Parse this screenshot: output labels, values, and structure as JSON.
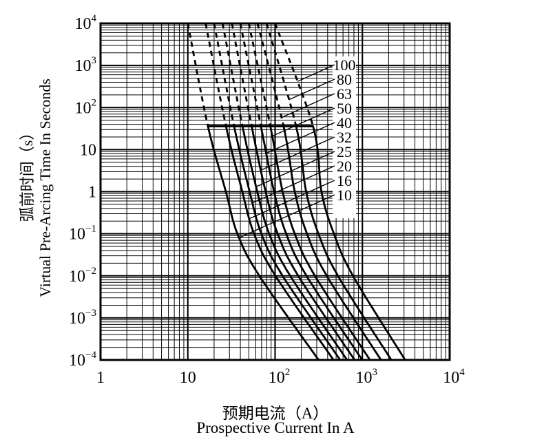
{
  "figure": {
    "background": "#ffffff",
    "foreground": "#000000"
  },
  "chart_data": {
    "type": "line",
    "title": "",
    "xlabel_cn": "预期电流（A）",
    "xlabel_en": "Prospective Current In A",
    "ylabel_cn": "弧前时间（s）",
    "ylabel_en": "Virtual Pre-Arcing Time In Seconds",
    "x_axis": {
      "scale": "log",
      "min": 1,
      "max": 10000,
      "unit": "A"
    },
    "y_axis": {
      "scale": "log",
      "min": 0.0001,
      "max": 10000,
      "unit": "s"
    },
    "x_ticks": [
      {
        "text": "1"
      },
      {
        "text": "10"
      },
      {
        "text": "10",
        "exp": "2"
      },
      {
        "text": "10",
        "exp": "3"
      },
      {
        "text": "10",
        "exp": "4"
      }
    ],
    "y_ticks": [
      {
        "text": "10",
        "exp": "4"
      },
      {
        "text": "10",
        "exp": "3"
      },
      {
        "text": "10",
        "exp": "2"
      },
      {
        "text": "10"
      },
      {
        "text": "1"
      },
      {
        "text": "10",
        "exp": "−1"
      },
      {
        "text": "10",
        "exp": "−2"
      },
      {
        "text": "10",
        "exp": "−3"
      },
      {
        "text": "10",
        "exp": "−4"
      }
    ],
    "grid": {
      "major": true,
      "minor": true,
      "style": "full log-log grid"
    },
    "legend": {
      "labels": [
        "100",
        "80",
        "63",
        "50",
        "40",
        "32",
        "25",
        "20",
        "16",
        "10"
      ],
      "unit": "A",
      "position": "inside-right"
    },
    "dash_to_solid_boundary": {
      "time_s": 36,
      "current_min_amps": 17,
      "current_max_amps": 272,
      "note": "curves dashed above this time; bold horizontal segment drawn at it"
    },
    "series": [
      {
        "rating_label": "10",
        "points_amps_seconds": [
          [
            10,
            10000.0
          ],
          [
            17,
            36
          ],
          [
            27.3,
            1
          ],
          [
            37,
            0.1
          ],
          [
            66,
            0.01
          ],
          [
            315,
            0.0001
          ]
        ]
      },
      {
        "rating_label": "16",
        "points_amps_seconds": [
          [
            16,
            10000.0
          ],
          [
            27.4,
            36
          ],
          [
            42.1,
            1
          ],
          [
            57.4,
            0.1
          ],
          [
            101,
            0.01
          ],
          [
            467,
            0.0001
          ]
        ]
      },
      {
        "rating_label": "20",
        "points_amps_seconds": [
          [
            20,
            10000.0
          ],
          [
            33.9,
            36
          ],
          [
            51.1,
            1
          ],
          [
            69.7,
            0.1
          ],
          [
            122,
            0.01
          ],
          [
            557,
            0.0001
          ]
        ]
      },
      {
        "rating_label": "25",
        "points_amps_seconds": [
          [
            25,
            10000.0
          ],
          [
            42.3,
            36
          ],
          [
            62.5,
            1
          ],
          [
            85.5,
            0.1
          ],
          [
            149,
            0.01
          ],
          [
            668,
            0.0001
          ]
        ]
      },
      {
        "rating_label": "32",
        "points_amps_seconds": [
          [
            32,
            10000.0
          ],
          [
            53.9,
            36
          ],
          [
            77.9,
            1
          ],
          [
            107,
            0.1
          ],
          [
            184,
            0.01
          ],
          [
            815,
            0.0001
          ]
        ]
      },
      {
        "rating_label": "40",
        "points_amps_seconds": [
          [
            40,
            10000.0
          ],
          [
            68.8,
            36
          ],
          [
            97.3,
            1
          ],
          [
            134,
            0.1
          ],
          [
            229,
            0.01
          ],
          [
            996,
            0.0001
          ]
        ]
      },
      {
        "rating_label": "50",
        "points_amps_seconds": [
          [
            50,
            10000.0
          ],
          [
            88.2,
            36
          ],
          [
            122,
            1
          ],
          [
            168,
            0.1
          ],
          [
            286,
            0.01
          ],
          [
            1222,
            0.0001
          ]
        ]
      },
      {
        "rating_label": "63",
        "points_amps_seconds": [
          [
            63,
            10000.0
          ],
          [
            125,
            36
          ],
          [
            168,
            1
          ],
          [
            232,
            0.1
          ],
          [
            391,
            0.01
          ],
          [
            1634,
            0.0001
          ]
        ]
      },
      {
        "rating_label": "80",
        "points_amps_seconds": [
          [
            80,
            10000.0
          ],
          [
            174,
            36
          ],
          [
            227,
            1
          ],
          [
            314,
            0.1
          ],
          [
            525,
            0.01
          ],
          [
            2146,
            0.0001
          ]
        ]
      },
      {
        "rating_label": "100",
        "points_amps_seconds": [
          [
            100,
            10000.0
          ],
          [
            272,
            36
          ],
          [
            340,
            1
          ],
          [
            472,
            0.1
          ],
          [
            780,
            0.01
          ],
          [
            3090,
            0.0001
          ]
        ]
      }
    ],
    "colors": {
      "curve": "#000000",
      "grid": "#000000",
      "background": "#ffffff"
    }
  }
}
